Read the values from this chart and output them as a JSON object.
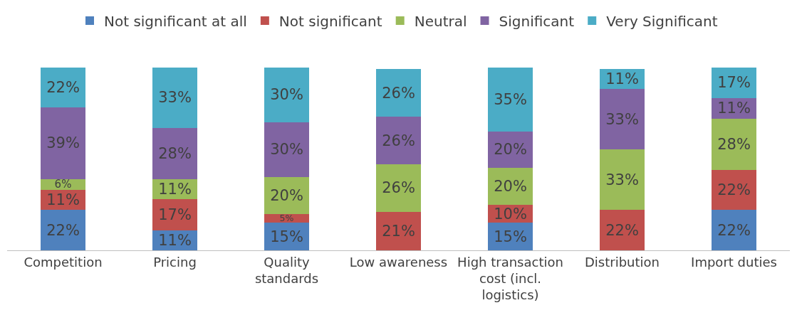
{
  "chart_data": {
    "type": "bar",
    "stacked": true,
    "legend": "top",
    "categories": [
      "Competition",
      "Pricing",
      "Quality standards",
      "Low awareness",
      "High transaction cost (incl. logistics)",
      "Distribution",
      "Import duties"
    ],
    "series": [
      {
        "name": "Not significant at all",
        "color": "#4f81bd",
        "values": [
          22,
          11,
          15,
          null,
          15,
          null,
          22
        ],
        "value_labels": [
          "22%",
          "11%",
          "15%",
          null,
          "15%",
          null,
          "22%"
        ]
      },
      {
        "name": "Not significant",
        "color": "#c0504d",
        "values": [
          11,
          17,
          5,
          21,
          10,
          22,
          22
        ],
        "value_labels": [
          "11%",
          "17%",
          "5%",
          "21%",
          "10%",
          "22%",
          "22%"
        ]
      },
      {
        "name": "Neutral",
        "color": "#9bbb59",
        "values": [
          6,
          11,
          20,
          26,
          20,
          33,
          28
        ],
        "value_labels": [
          "6%",
          "11%",
          "20%",
          "26%",
          "20%",
          "33%",
          "28%"
        ]
      },
      {
        "name": "Significant",
        "color": "#8064a2",
        "values": [
          39,
          28,
          30,
          26,
          20,
          33,
          11
        ],
        "value_labels": [
          "39%",
          "28%",
          "30%",
          "26%",
          "20%",
          "33%",
          "11%"
        ]
      },
      {
        "name": "Very Significant",
        "color": "#4bacc6",
        "values": [
          22,
          33,
          30,
          26,
          35,
          11,
          17
        ],
        "value_labels": [
          "22%",
          "33%",
          "30%",
          "26%",
          "35%",
          "11%",
          "17%"
        ]
      }
    ]
  }
}
